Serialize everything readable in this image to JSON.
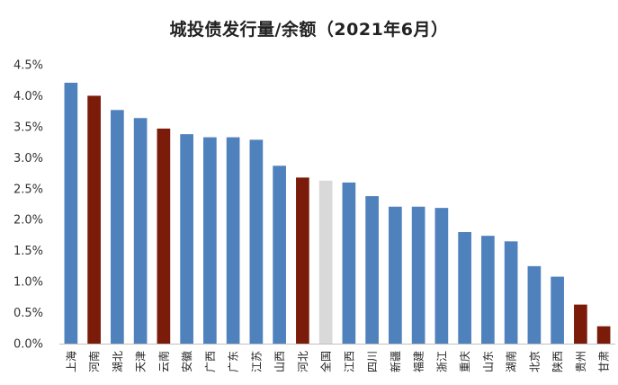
{
  "chart_data": {
    "type": "bar",
    "title": "城投债发行量/余额（2021年6月）",
    "xlabel": "",
    "ylabel": "",
    "ylim": [
      0,
      4.5
    ],
    "yticks": [
      "0.0%",
      "0.5%",
      "1.0%",
      "1.5%",
      "2.0%",
      "2.5%",
      "3.0%",
      "3.5%",
      "4.0%",
      "4.5%"
    ],
    "grid": false,
    "legend": "none",
    "colors": {
      "default": "#4f81bd",
      "highlight": "#7b1c0b",
      "national": "#d9d9d9"
    },
    "categories": [
      "上海",
      "河南",
      "湖北",
      "天津",
      "云南",
      "安徽",
      "广西",
      "广东",
      "江苏",
      "山西",
      "河北",
      "全国",
      "江西",
      "四川",
      "新疆",
      "福建",
      "浙江",
      "重庆",
      "山东",
      "湖南",
      "北京",
      "陕西",
      "贵州",
      "甘肃"
    ],
    "values": [
      4.21,
      4.0,
      3.77,
      3.64,
      3.47,
      3.38,
      3.33,
      3.33,
      3.29,
      2.87,
      2.68,
      2.63,
      2.6,
      2.38,
      2.21,
      2.21,
      2.19,
      1.8,
      1.74,
      1.65,
      1.25,
      1.08,
      0.63,
      0.28
    ],
    "bar_colors": [
      "default",
      "highlight",
      "default",
      "default",
      "highlight",
      "default",
      "default",
      "default",
      "default",
      "default",
      "highlight",
      "national",
      "default",
      "default",
      "default",
      "default",
      "default",
      "default",
      "default",
      "default",
      "default",
      "default",
      "highlight",
      "highlight"
    ]
  }
}
